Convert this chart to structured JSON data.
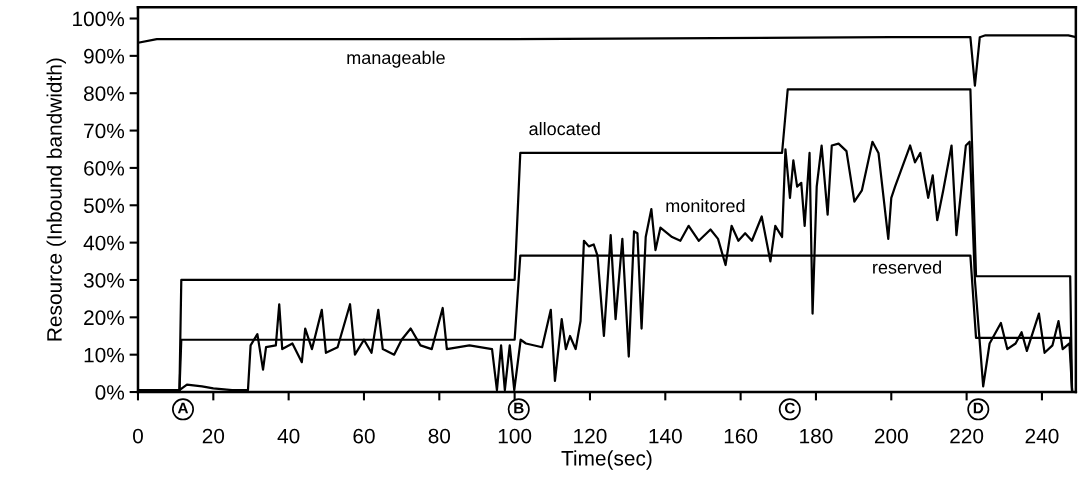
{
  "chart_data": {
    "type": "line",
    "xlabel": "Time(sec)",
    "ylabel": "Resource (Inbound bandwidth)",
    "xlim": [
      0,
      249
    ],
    "ylim": [
      0,
      103
    ],
    "xticks": [
      0,
      20,
      40,
      60,
      80,
      100,
      120,
      140,
      160,
      180,
      200,
      220,
      240
    ],
    "yticks": [
      {
        "value": 0,
        "label": "0%"
      },
      {
        "value": 10,
        "label": "10%"
      },
      {
        "value": 20,
        "label": "20%"
      },
      {
        "value": 30,
        "label": "30%"
      },
      {
        "value": 40,
        "label": "40%"
      },
      {
        "value": 50,
        "label": "50%"
      },
      {
        "value": 60,
        "label": "60%"
      },
      {
        "value": 70,
        "label": "70%"
      },
      {
        "value": 80,
        "label": "80%"
      },
      {
        "value": 90,
        "label": "90%"
      },
      {
        "value": 100,
        "label": "100%"
      }
    ],
    "grid": false,
    "marker": "none",
    "line_style": "solid",
    "series": [
      {
        "name": "manageable",
        "color": "#000000",
        "x": [
          0,
          5,
          100,
          200,
          221,
          222.2,
          223.5,
          225,
          247,
          249
        ],
        "values": [
          93.5,
          94.5,
          94.5,
          95,
          95,
          82,
          95,
          95.5,
          95.5,
          95
        ]
      },
      {
        "name": "allocated",
        "color": "#000000",
        "x": [
          0,
          11,
          11.5,
          100,
          101.5,
          171,
          172.5,
          221,
          222.5,
          247.5,
          248
        ],
        "values": [
          0,
          0,
          30,
          30,
          64,
          64,
          81,
          81,
          31,
          31,
          0
        ]
      },
      {
        "name": "reserved",
        "color": "#000000",
        "x": [
          0,
          11,
          11.5,
          100,
          101.5,
          221,
          222.5,
          247.5,
          248
        ],
        "values": [
          0,
          0,
          14,
          14,
          36.5,
          36.5,
          14.5,
          14.5,
          0
        ]
      },
      {
        "name": "monitored",
        "color": "#000000",
        "x": [
          0,
          11,
          13,
          17,
          20,
          25,
          29.2,
          29.9,
          31.7,
          33.2,
          34,
          36.6,
          37.5,
          38.3,
          41,
          43.5,
          44.4,
          46.2,
          48.8,
          49.9,
          53,
          56.3,
          57.6,
          60,
          62,
          63.8,
          65,
          68,
          70,
          72.4,
          75,
          78,
          80.9,
          82,
          88,
          94,
          95.3,
          96.4,
          97.4,
          98.7,
          99.9,
          101.6,
          103,
          107.3,
          109.6,
          110.7,
          112.5,
          113.6,
          114.7,
          116.2,
          117.5,
          118.4,
          119.7,
          121,
          122,
          123.7,
          125.5,
          126.8,
          128.6,
          130.3,
          131.7,
          132.6,
          133.7,
          134.8,
          136.3,
          137.4,
          138.7,
          141.8,
          144,
          146.2,
          148.9,
          152,
          154,
          156,
          157.6,
          159.4,
          161.2,
          163,
          165.6,
          167.9,
          169.2,
          171,
          171.9,
          173.1,
          174,
          175,
          176.1,
          177,
          178.3,
          179.1,
          180.2,
          181.5,
          183.1,
          184.2,
          186,
          188.1,
          190.2,
          192.2,
          195,
          196.6,
          199.2,
          200,
          201,
          205,
          206.3,
          207.7,
          209.8,
          211,
          212.2,
          213.8,
          216,
          217.3,
          219.8,
          220.8,
          222.2,
          224.4,
          226.1,
          229.1,
          230.8,
          233,
          234.6,
          236,
          239.2,
          240.7,
          242.8,
          244.4,
          245.5,
          247.3,
          248
        ],
        "values": [
          0.5,
          0.5,
          2,
          1.5,
          1,
          0.5,
          0.5,
          12.5,
          15.5,
          6,
          12,
          12.5,
          23.5,
          11.5,
          13,
          8,
          17,
          11.5,
          22,
          10.5,
          12,
          23.5,
          10,
          14,
          10.5,
          22,
          11.5,
          10,
          14,
          17,
          12.5,
          11.5,
          22.5,
          11.5,
          12.5,
          11.5,
          0.5,
          12.5,
          0.5,
          12.5,
          0.5,
          14,
          13,
          12,
          22,
          3,
          19.5,
          11.5,
          15,
          11.5,
          19,
          40.5,
          39,
          39.5,
          36.5,
          15,
          42,
          19.5,
          41,
          9.5,
          43,
          42.5,
          17,
          41.5,
          49,
          38,
          44,
          41.5,
          40.5,
          44.5,
          40.5,
          43.5,
          41,
          34,
          44.5,
          40.5,
          42.5,
          40.5,
          47,
          35,
          44.5,
          41.5,
          65,
          52,
          62,
          55,
          56,
          44.5,
          64,
          21,
          55,
          66,
          47.5,
          66,
          66.5,
          64.5,
          51,
          54,
          67,
          64,
          41,
          52,
          55,
          66,
          61.5,
          64,
          52,
          58,
          46,
          54,
          66,
          42,
          66,
          67,
          30,
          1.5,
          13,
          18.5,
          11.5,
          13,
          16,
          11,
          21,
          10.5,
          12.5,
          19,
          11.5,
          13,
          0.5
        ]
      }
    ],
    "annotations": [
      "A",
      "B",
      "C",
      "D"
    ]
  }
}
